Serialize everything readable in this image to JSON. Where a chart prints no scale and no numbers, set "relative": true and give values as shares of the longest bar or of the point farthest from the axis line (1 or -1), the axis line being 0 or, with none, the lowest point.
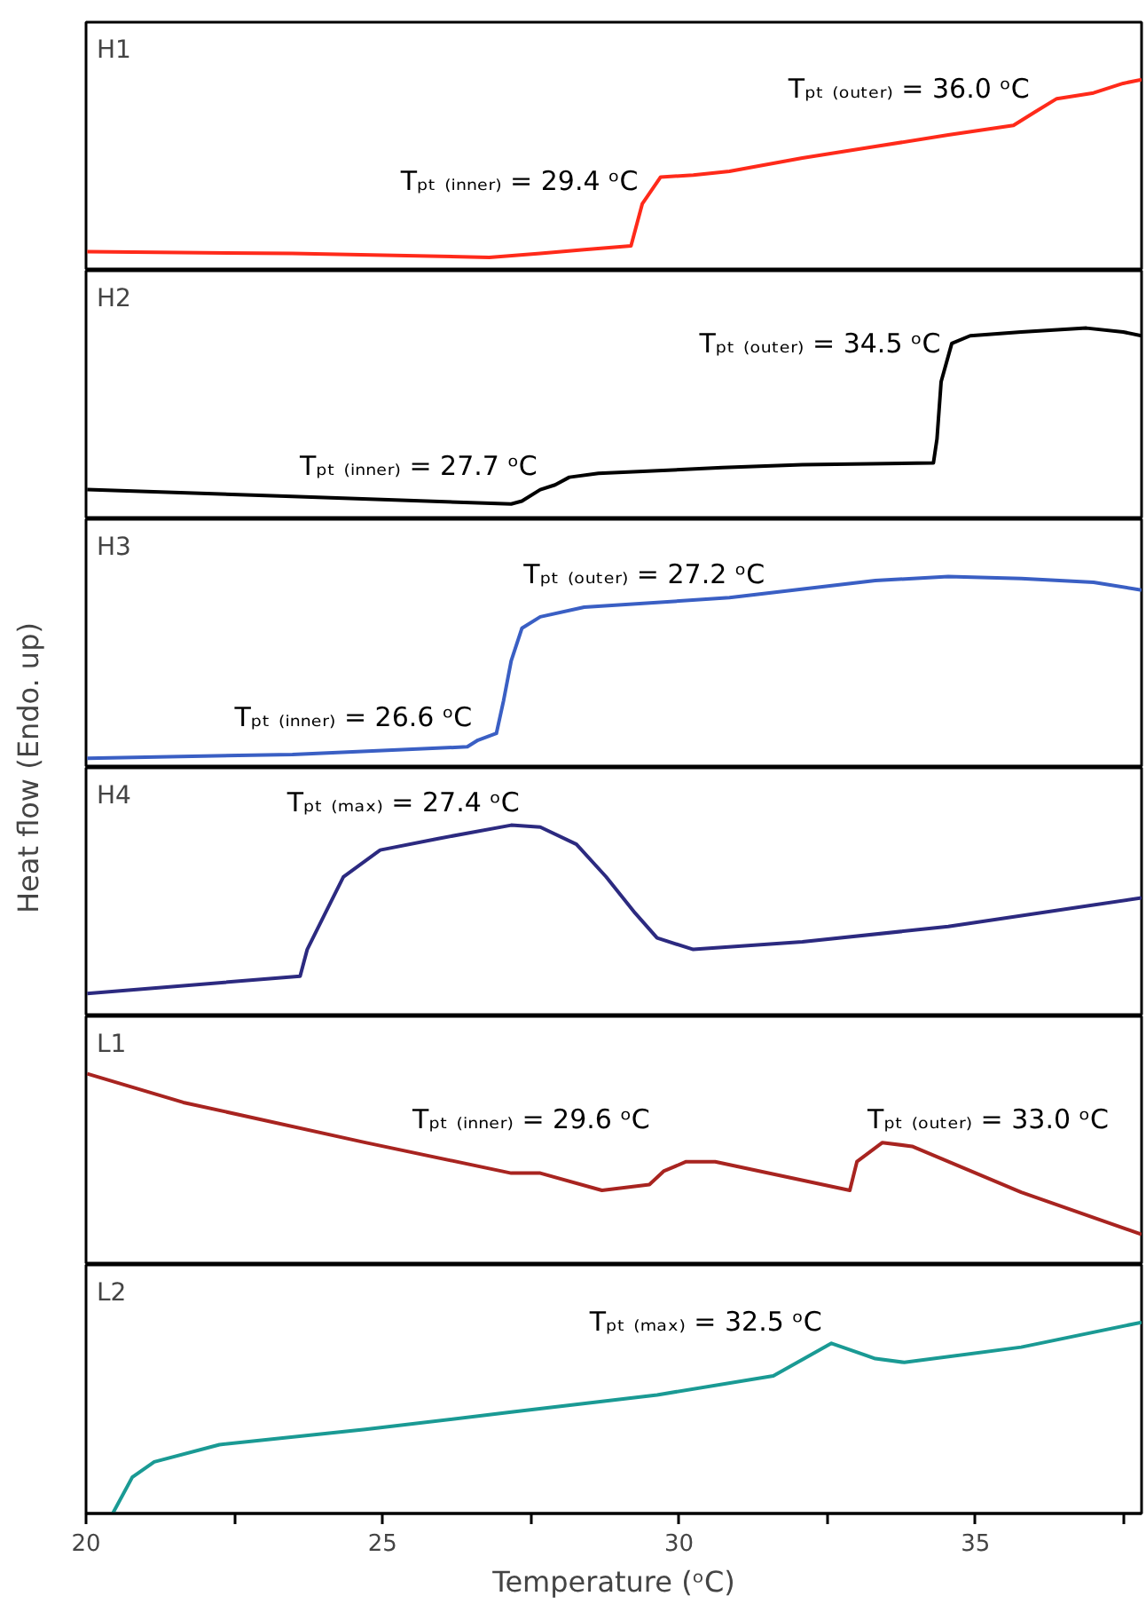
{
  "chart_data": [
    {
      "type": "line",
      "title": "H1",
      "relative": true,
      "xlim": [
        20,
        37.8
      ],
      "tick_labels": false,
      "x": [
        20.02,
        23.48,
        26.8,
        27.66,
        28.4,
        29.19,
        29.38,
        29.69,
        30.24,
        30.85,
        32.08,
        33.31,
        34.54,
        35.64,
        36.0,
        36.37,
        36.99,
        37.49,
        37.8
      ],
      "series": [
        {
          "color": "#ff2a1a",
          "values": [
            0.1,
            0.09,
            0.07,
            0.09,
            0.11,
            0.13,
            0.35,
            0.49,
            0.5,
            0.52,
            0.59,
            0.65,
            0.71,
            0.76,
            0.83,
            0.9,
            0.93,
            0.98,
            1.0
          ]
        }
      ],
      "annotations": [
        {
          "text": "Tₚₜ ₍ᵢₙₙₑᵣ₎ = 29.4 ᵒC",
          "x": 29.4,
          "y": 0.35
        },
        {
          "text": "Tₚₜ ₍ₒᵤₜₑᵣ₎ = 36.0 ᵒC",
          "x": 36.0,
          "y": 0.83
        }
      ]
    },
    {
      "type": "line",
      "title": "H2",
      "relative": true,
      "xlim": [
        20,
        37.8
      ],
      "tick_labels": false,
      "x": [
        20.02,
        23.48,
        27.17,
        27.35,
        27.66,
        27.91,
        28.15,
        28.64,
        30.73,
        32.08,
        34.29,
        34.35,
        34.42,
        34.6,
        34.91,
        35.77,
        36.87,
        37.49,
        37.8
      ],
      "series": [
        {
          "color": "#000000",
          "values": [
            0.155,
            0.12,
            0.08,
            0.095,
            0.155,
            0.18,
            0.22,
            0.24,
            0.27,
            0.285,
            0.295,
            0.42,
            0.72,
            0.92,
            0.96,
            0.98,
            1.0,
            0.98,
            0.96
          ]
        }
      ],
      "annotations": [
        {
          "text": "Tₚₜ ₍ᵢₙₙₑᵣ₎ = 27.7 ᵒC",
          "x": 27.7,
          "y": 0.16
        },
        {
          "text": "Tₚₜ ₍ₒᵤₜₑᵣ₎ = 34.5 ᵒC",
          "x": 34.5,
          "y": 0.8
        }
      ]
    },
    {
      "type": "line",
      "title": "H3",
      "relative": true,
      "xlim": [
        20,
        37.8
      ],
      "tick_labels": false,
      "ylabel": "Heat flow (Endo. up)",
      "x": [
        20.02,
        23.48,
        26.43,
        26.61,
        26.92,
        27.04,
        27.17,
        27.35,
        27.66,
        28.4,
        30.85,
        33.31,
        34.54,
        35.77,
        36.99,
        37.8
      ],
      "series": [
        {
          "color": "#3a5fc4",
          "values": [
            0.05,
            0.07,
            0.11,
            0.145,
            0.18,
            0.35,
            0.56,
            0.73,
            0.79,
            0.84,
            0.89,
            0.98,
            1.0,
            0.99,
            0.97,
            0.93
          ]
        }
      ],
      "annotations": [
        {
          "text": "Tₚₜ ₍ᵢₙₙₑᵣ₎ = 26.6 ᵒC",
          "x": 26.6,
          "y": 0.145
        },
        {
          "text": "Tₚₜ ₍ₒᵤₜₑᵣ₎ = 27.2 ᵒC",
          "x": 27.2,
          "y": 0.6
        }
      ]
    },
    {
      "type": "line",
      "title": "H4",
      "relative": true,
      "xlim": [
        20,
        37.8
      ],
      "tick_labels": false,
      "x": [
        20.02,
        23.61,
        23.73,
        23.97,
        24.34,
        24.96,
        25.94,
        27.17,
        27.66,
        28.27,
        28.77,
        29.26,
        29.63,
        30.24,
        32.08,
        34.54,
        37.8
      ],
      "series": [
        {
          "color": "#2c2a80",
          "values": [
            0.12,
            0.21,
            0.35,
            0.5,
            0.73,
            0.87,
            0.93,
            1.0,
            0.99,
            0.9,
            0.73,
            0.54,
            0.41,
            0.35,
            0.39,
            0.47,
            0.62
          ]
        }
      ],
      "annotations": [
        {
          "text": "Tₚₜ ₍ₘₐₓ₎ = 27.4 ᵒC",
          "x": 27.4,
          "y": 1.0
        }
      ]
    },
    {
      "type": "line",
      "title": "L1",
      "relative": true,
      "xlim": [
        20,
        37.8
      ],
      "tick_labels": false,
      "x": [
        20.02,
        21.64,
        24.71,
        27.17,
        27.66,
        28.7,
        29.5,
        29.74,
        30.12,
        30.61,
        32.88,
        33.0,
        33.43,
        33.93,
        35.77,
        37.8
      ],
      "series": [
        {
          "color": "#a82420",
          "values": [
            1.0,
            0.85,
            0.64,
            0.48,
            0.48,
            0.39,
            0.42,
            0.49,
            0.54,
            0.54,
            0.39,
            0.54,
            0.64,
            0.62,
            0.38,
            0.16
          ]
        }
      ],
      "annotations": [
        {
          "text": "Tₚₜ ₍ᵢₙₙₑᵣ₎ = 29.6 ᵒC",
          "x": 29.6,
          "y": 0.45
        },
        {
          "text": "Tₚₜ ₍ₒᵤₜₑᵣ₎ = 33.0 ᵒC",
          "x": 33.0,
          "y": 0.54
        }
      ]
    },
    {
      "type": "line",
      "title": "L2",
      "relative": true,
      "xlim": [
        20,
        37.8
      ],
      "tick_labels": "x",
      "xlabel": "Temperature (ᵒC)",
      "xticks": [
        20,
        {
          "value": 22.5,
          "label": null
        },
        25,
        {
          "value": 27.5,
          "label": null
        },
        30,
        {
          "value": 32.5,
          "label": null
        },
        35,
        {
          "value": 37.5,
          "label": null
        }
      ],
      "x": [
        20.45,
        20.78,
        21.15,
        22.25,
        24.71,
        27.17,
        29.63,
        31.59,
        32.57,
        33.31,
        33.8,
        35.77,
        37.8
      ],
      "series": [
        {
          "color": "#1a9a94",
          "values": [
            0.0,
            0.19,
            0.27,
            0.36,
            0.44,
            0.53,
            0.62,
            0.72,
            0.89,
            0.81,
            0.79,
            0.87,
            1.0
          ]
        }
      ],
      "annotations": [
        {
          "text": "Tₚₜ ₍ₘₐₓ₎ = 32.5 ᵒC",
          "x": 32.5,
          "y": 0.88
        }
      ]
    }
  ]
}
